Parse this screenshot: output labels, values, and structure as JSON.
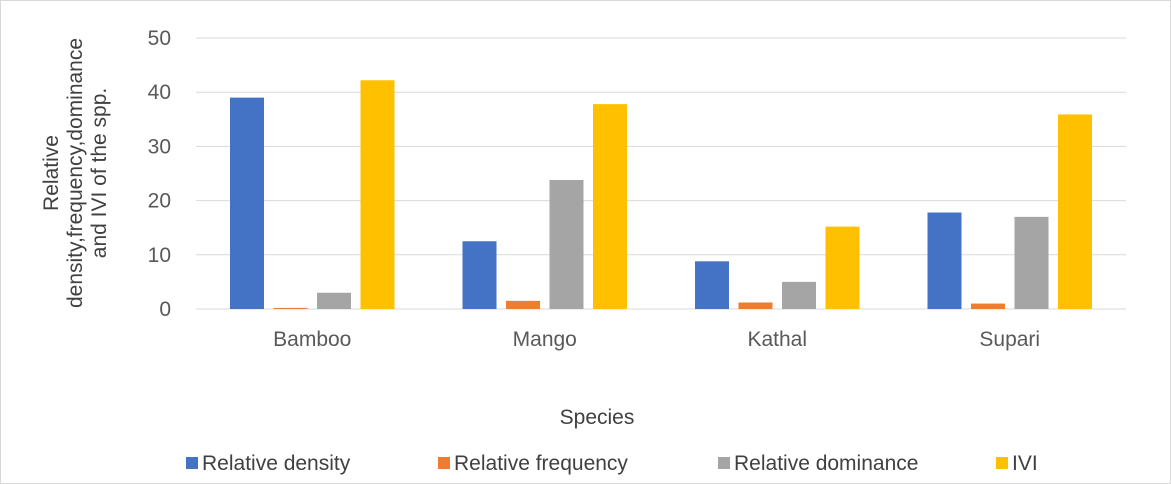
{
  "chart_data": {
    "type": "bar",
    "title": "",
    "xlabel": "Species",
    "ylabel_lines": [
      "Relative",
      "density,frequency,dominance",
      "and IVI of the spp."
    ],
    "categories": [
      "Bamboo",
      "Mango",
      "Kathal",
      "Supari"
    ],
    "ylim": [
      0,
      50
    ],
    "yticks": [
      0,
      10,
      20,
      30,
      40,
      50
    ],
    "grid": true,
    "legend_position": "bottom",
    "series": [
      {
        "name": "Relative density",
        "color": "#4472C4",
        "values": [
          39,
          12.5,
          8.8,
          17.8
        ]
      },
      {
        "name": "Relative frequency",
        "color": "#ED7D31",
        "values": [
          0.2,
          1.5,
          1.2,
          1.0
        ]
      },
      {
        "name": "Relative dominance",
        "color": "#A5A5A5",
        "values": [
          3,
          23.8,
          5,
          17
        ]
      },
      {
        "name": "IVI",
        "color": "#FFC000",
        "values": [
          42.2,
          37.8,
          15.2,
          35.9
        ]
      }
    ]
  }
}
